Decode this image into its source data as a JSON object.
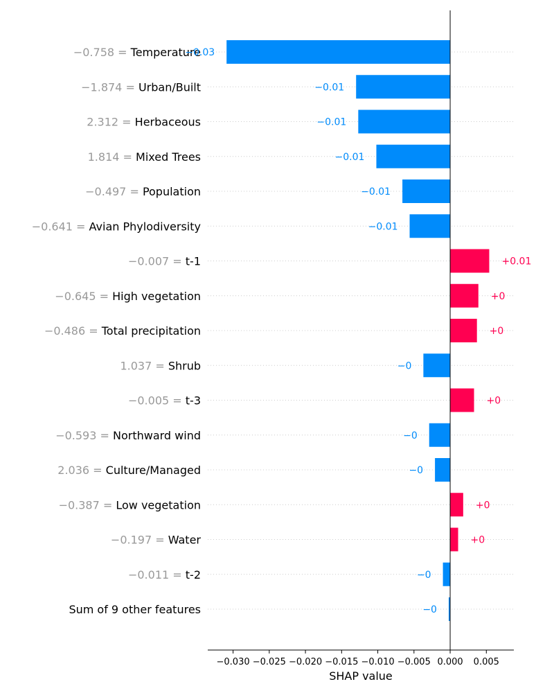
{
  "chart_data": {
    "type": "bar",
    "orientation": "horizontal",
    "xlabel": "SHAP value",
    "xlim": [
      -0.0335,
      0.0088
    ],
    "xticks": [
      -0.03,
      -0.025,
      -0.02,
      -0.015,
      -0.01,
      -0.005,
      0.0,
      0.005
    ],
    "xtick_labels": [
      "−0.030",
      "−0.025",
      "−0.020",
      "−0.015",
      "−0.010",
      "−0.005",
      "0.000",
      "0.005"
    ],
    "colors": {
      "negative": "#008bfb",
      "positive": "#ff0051",
      "feature_value": "#999999"
    },
    "features": [
      {
        "value": "−0.758",
        "name": "Temperature",
        "shap": -0.0309,
        "label": "−0.03"
      },
      {
        "value": "−1.874",
        "name": "Urban/Built",
        "shap": -0.013,
        "label": "−0.01"
      },
      {
        "value": "2.312",
        "name": "Herbaceous",
        "shap": -0.0127,
        "label": "−0.01"
      },
      {
        "value": "1.814",
        "name": "Mixed Trees",
        "shap": -0.0102,
        "label": "−0.01"
      },
      {
        "value": "−0.497",
        "name": "Population",
        "shap": -0.0066,
        "label": "−0.01"
      },
      {
        "value": "−0.641",
        "name": "Avian Phylodiversity",
        "shap": -0.0056,
        "label": "−0.01"
      },
      {
        "value": "−0.007",
        "name": "t-1",
        "shap": 0.0054,
        "label": "+0.01"
      },
      {
        "value": "−0.645",
        "name": "High vegetation",
        "shap": 0.0039,
        "label": "+0"
      },
      {
        "value": "−0.486",
        "name": "Total precipitation",
        "shap": 0.0037,
        "label": "+0"
      },
      {
        "value": "1.037",
        "name": "Shrub",
        "shap": -0.0037,
        "label": "−0"
      },
      {
        "value": "−0.005",
        "name": "t-3",
        "shap": 0.0033,
        "label": "+0"
      },
      {
        "value": "−0.593",
        "name": "Northward wind",
        "shap": -0.0029,
        "label": "−0"
      },
      {
        "value": "2.036",
        "name": "Culture/Managed",
        "shap": -0.0021,
        "label": "−0"
      },
      {
        "value": "−0.387",
        "name": "Low vegetation",
        "shap": 0.0018,
        "label": "+0"
      },
      {
        "value": "−0.197",
        "name": "Water",
        "shap": 0.0011,
        "label": "+0"
      },
      {
        "value": "−0.011",
        "name": "t-2",
        "shap": -0.001,
        "label": "−0"
      },
      {
        "value": "",
        "name": "Sum of 9 other features",
        "shap": -0.0002,
        "label": "−0"
      }
    ]
  }
}
